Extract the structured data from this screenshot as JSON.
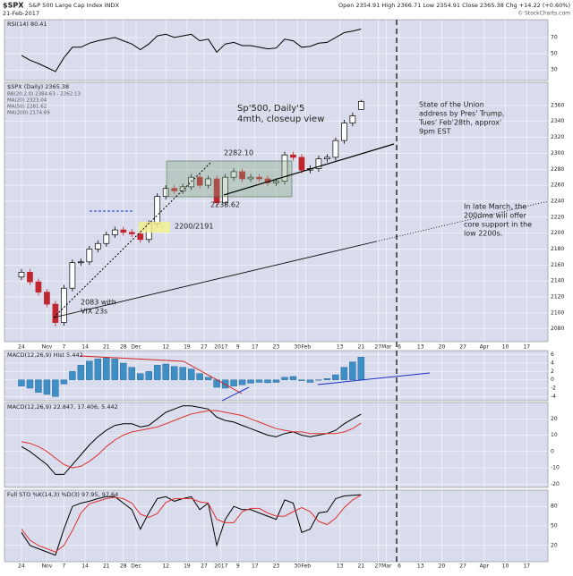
{
  "header": {
    "symbol": "$SPX",
    "name": "S&P 500 Large Cap Index INDX",
    "date": "21-Feb-2017",
    "quote": "Open 2354.91  High 2366.71  Low 2354.91  Close 2365.38  Chg +14.22 (+0.60%)",
    "credit": "© StockCharts.com"
  },
  "chart_data": [
    {
      "type": "line",
      "label": "RSI(14) 80.41",
      "ylim": [
        17,
        92
      ],
      "yticks": [
        30,
        50,
        70
      ],
      "x": [
        0,
        2,
        4,
        6,
        8,
        10,
        12,
        14,
        16,
        18,
        20,
        22,
        24,
        26,
        28,
        30,
        32,
        34,
        36,
        38,
        40,
        42,
        44,
        46,
        48,
        50,
        52,
        54,
        56,
        58,
        60,
        62,
        64,
        66,
        68,
        70,
        72,
        74,
        76,
        78,
        80
      ],
      "series": [
        {
          "name": "RSI(14)",
          "color": "#000000",
          "values": [
            48,
            42,
            38,
            33,
            28,
            45,
            58,
            58,
            63,
            66,
            68,
            70,
            66,
            62,
            55,
            62,
            72,
            74,
            70,
            72,
            74,
            66,
            68,
            52,
            62,
            64,
            60,
            60,
            58,
            56,
            57,
            68,
            66,
            58,
            59,
            63,
            64,
            70,
            76,
            78,
            80.41
          ]
        }
      ]
    },
    {
      "type": "candlestick",
      "label": "$SPX (Daily) 2365.38",
      "legend": [
        "BB(20,2.0) 2384.63 - 2262.13",
        "MA(20) 2323.04",
        "MA(50) 2281.62",
        "MA(200) 2174.69"
      ],
      "ylim": [
        2064,
        2389
      ],
      "yticks": [
        2080,
        2100,
        2120,
        2140,
        2160,
        2180,
        2200,
        2220,
        2240,
        2260,
        2280,
        2300,
        2320,
        2340,
        2360
      ],
      "xlim": [
        -4,
        124
      ],
      "xticks": [
        {
          "value": 0,
          "label": "24"
        },
        {
          "value": 6,
          "label": "Nov"
        },
        {
          "value": 10,
          "label": "7"
        },
        {
          "value": 15,
          "label": "14"
        },
        {
          "value": 20,
          "label": "21"
        },
        {
          "value": 24,
          "label": "28"
        },
        {
          "value": 27,
          "label": "Dec"
        },
        {
          "value": 34,
          "label": "12"
        },
        {
          "value": 39,
          "label": "19"
        },
        {
          "value": 43,
          "label": "27"
        },
        {
          "value": 47,
          "label": "2017"
        },
        {
          "value": 51,
          "label": "9"
        },
        {
          "value": 55,
          "label": "17"
        },
        {
          "value": 60,
          "label": "23"
        },
        {
          "value": 65,
          "label": "30"
        },
        {
          "value": 67,
          "label": "Feb"
        },
        {
          "value": 75,
          "label": "13"
        },
        {
          "value": 80,
          "label": "21"
        },
        {
          "value": 84,
          "label": "27"
        },
        {
          "value": 86,
          "label": "Mar"
        },
        {
          "value": 89,
          "label": "6"
        },
        {
          "value": 94,
          "label": "13"
        },
        {
          "value": 99,
          "label": "20"
        },
        {
          "value": 104,
          "label": "27"
        },
        {
          "value": 109,
          "label": "Apr"
        },
        {
          "value": 114,
          "label": "10"
        },
        {
          "value": 119,
          "label": "17"
        }
      ],
      "x": [
        0,
        2,
        4,
        6,
        8,
        10,
        12,
        14,
        16,
        18,
        20,
        22,
        24,
        26,
        28,
        30,
        32,
        34,
        36,
        38,
        40,
        42,
        44,
        46,
        48,
        50,
        52,
        54,
        56,
        58,
        60,
        62,
        64,
        66,
        68,
        70,
        72,
        74,
        76,
        78,
        80
      ],
      "open": [
        2145,
        2151,
        2139,
        2126,
        2111,
        2088,
        2131,
        2163,
        2164,
        2180,
        2187,
        2198,
        2204,
        2201,
        2199,
        2192,
        2212,
        2246,
        2256,
        2253,
        2258,
        2270,
        2260,
        2268,
        2238,
        2270,
        2277,
        2268,
        2270,
        2268,
        2263,
        2265,
        2298,
        2295,
        2279,
        2281,
        2293,
        2295,
        2316,
        2338,
        2355
      ],
      "high": [
        2155,
        2155,
        2143,
        2130,
        2115,
        2135,
        2167,
        2168,
        2184,
        2191,
        2202,
        2208,
        2208,
        2205,
        2203,
        2216,
        2250,
        2260,
        2260,
        2262,
        2274,
        2274,
        2272,
        2272,
        2274,
        2281,
        2281,
        2274,
        2274,
        2272,
        2269,
        2302,
        2302,
        2299,
        2285,
        2297,
        2299,
        2320,
        2342,
        2351,
        2367
      ],
      "low": [
        2141,
        2135,
        2122,
        2107,
        2083,
        2084,
        2127,
        2159,
        2160,
        2176,
        2183,
        2194,
        2197,
        2195,
        2188,
        2188,
        2208,
        2242,
        2249,
        2249,
        2254,
        2256,
        2256,
        2234,
        2234,
        2266,
        2264,
        2264,
        2264,
        2259,
        2259,
        2261,
        2291,
        2275,
        2275,
        2277,
        2289,
        2291,
        2312,
        2334,
        2355
      ],
      "close": [
        2151,
        2139,
        2126,
        2111,
        2088,
        2131,
        2163,
        2164,
        2180,
        2187,
        2198,
        2204,
        2201,
        2199,
        2192,
        2212,
        2246,
        2256,
        2253,
        2258,
        2270,
        2260,
        2268,
        2238,
        2270,
        2277,
        2268,
        2270,
        2268,
        2263,
        2265,
        2298,
        2295,
        2279,
        2281,
        2293,
        2295,
        2316,
        2338,
        2347,
        2365
      ],
      "annotations": [
        "Sp'500, Daily'5",
        "4mth, closeup view",
        "2282.10",
        "2233.62",
        "2200/2191",
        "2083 with",
        "VIX 23s",
        "State of the Union",
        "address by Pres' Trump,",
        "Tues' Feb'28th, approx'",
        "9pm EST",
        "In late March, the",
        "200dma will offer",
        "core support in the",
        "low 2200s."
      ]
    },
    {
      "type": "bar",
      "label": "MACD(12,26,9) Hist 5.442",
      "color": "#3d8fc6",
      "ylim": [
        -5,
        7
      ],
      "yticks": [
        -4,
        -2,
        0,
        2,
        4,
        6
      ],
      "x": [
        0,
        2,
        4,
        6,
        8,
        10,
        12,
        14,
        16,
        18,
        20,
        22,
        24,
        26,
        28,
        30,
        32,
        34,
        36,
        38,
        40,
        42,
        44,
        46,
        48,
        50,
        52,
        54,
        56,
        58,
        60,
        62,
        64,
        66,
        68,
        70,
        72,
        74,
        76,
        78,
        80
      ],
      "values": [
        -1.5,
        -2,
        -3,
        -3.5,
        -4,
        -1,
        2,
        3.5,
        4.5,
        5,
        5.2,
        5,
        4,
        3,
        1.5,
        2,
        3.5,
        3.8,
        3.2,
        3,
        2.6,
        1.5,
        0.6,
        -1.8,
        -2,
        -1.5,
        -1.2,
        -0.8,
        -0.6,
        -0.7,
        -0.6,
        0.6,
        0.8,
        -0.2,
        -0.6,
        -0.1,
        0.3,
        1.2,
        3,
        4.3,
        5.442
      ]
    },
    {
      "type": "line",
      "label": "MACD(12,26,9) 22.847, 17.406, 5.442",
      "ylim": [
        -22,
        30
      ],
      "yticks": [
        -20,
        -10,
        0,
        10,
        20
      ],
      "x": [
        0,
        2,
        4,
        6,
        8,
        10,
        12,
        14,
        16,
        18,
        20,
        22,
        24,
        26,
        28,
        30,
        32,
        34,
        36,
        38,
        40,
        42,
        44,
        46,
        48,
        50,
        52,
        54,
        56,
        58,
        60,
        62,
        64,
        66,
        68,
        70,
        72,
        74,
        76,
        78,
        80
      ],
      "series": [
        {
          "name": "MACD",
          "color": "#000000",
          "values": [
            3,
            0,
            -4,
            -8,
            -14,
            -14,
            -8,
            -2,
            4,
            9,
            13,
            16,
            17,
            17,
            15,
            16,
            20,
            24,
            26,
            28,
            28,
            27,
            26,
            21,
            19,
            18,
            16,
            14,
            12,
            10,
            9,
            11,
            12,
            10,
            9,
            10,
            11,
            13,
            17,
            20,
            22.847
          ]
        },
        {
          "name": "Signal",
          "color": "#e03030",
          "values": [
            6,
            5,
            3,
            0,
            -4,
            -8,
            -10,
            -9,
            -6,
            -2,
            3,
            7,
            10,
            12,
            13,
            14,
            15,
            17,
            19,
            21,
            23,
            24,
            25,
            25,
            24,
            23,
            22,
            20,
            18,
            16,
            14,
            13,
            12,
            12,
            11,
            11,
            11,
            11,
            12,
            14,
            17.406
          ]
        }
      ]
    },
    {
      "type": "line",
      "label": "Full STO %K(14,3) %D(3) 97.95, 97.64",
      "ylim": [
        -5,
        105
      ],
      "yticks": [
        20,
        50,
        80
      ],
      "x": [
        0,
        2,
        4,
        6,
        8,
        10,
        12,
        14,
        16,
        18,
        20,
        22,
        24,
        26,
        28,
        30,
        32,
        34,
        36,
        38,
        40,
        42,
        44,
        46,
        48,
        50,
        52,
        54,
        56,
        58,
        60,
        62,
        64,
        66,
        68,
        70,
        72,
        74,
        76,
        78,
        80
      ],
      "series": [
        {
          "name": "%K",
          "color": "#000000",
          "values": [
            40,
            20,
            15,
            10,
            5,
            45,
            80,
            85,
            88,
            92,
            95,
            95,
            85,
            75,
            45,
            70,
            92,
            95,
            88,
            92,
            95,
            75,
            85,
            20,
            60,
            80,
            75,
            75,
            70,
            65,
            60,
            90,
            85,
            40,
            45,
            70,
            72,
            92,
            96,
            97,
            97.95
          ]
        },
        {
          "name": "%D",
          "color": "#e03030",
          "values": [
            45,
            28,
            20,
            15,
            10,
            20,
            43,
            70,
            84,
            88,
            92,
            94,
            92,
            85,
            68,
            63,
            69,
            86,
            92,
            92,
            92,
            87,
            85,
            60,
            55,
            55,
            72,
            77,
            77,
            70,
            65,
            65,
            72,
            78,
            72,
            57,
            52,
            62,
            78,
            90,
            97.64
          ]
        }
      ]
    }
  ]
}
